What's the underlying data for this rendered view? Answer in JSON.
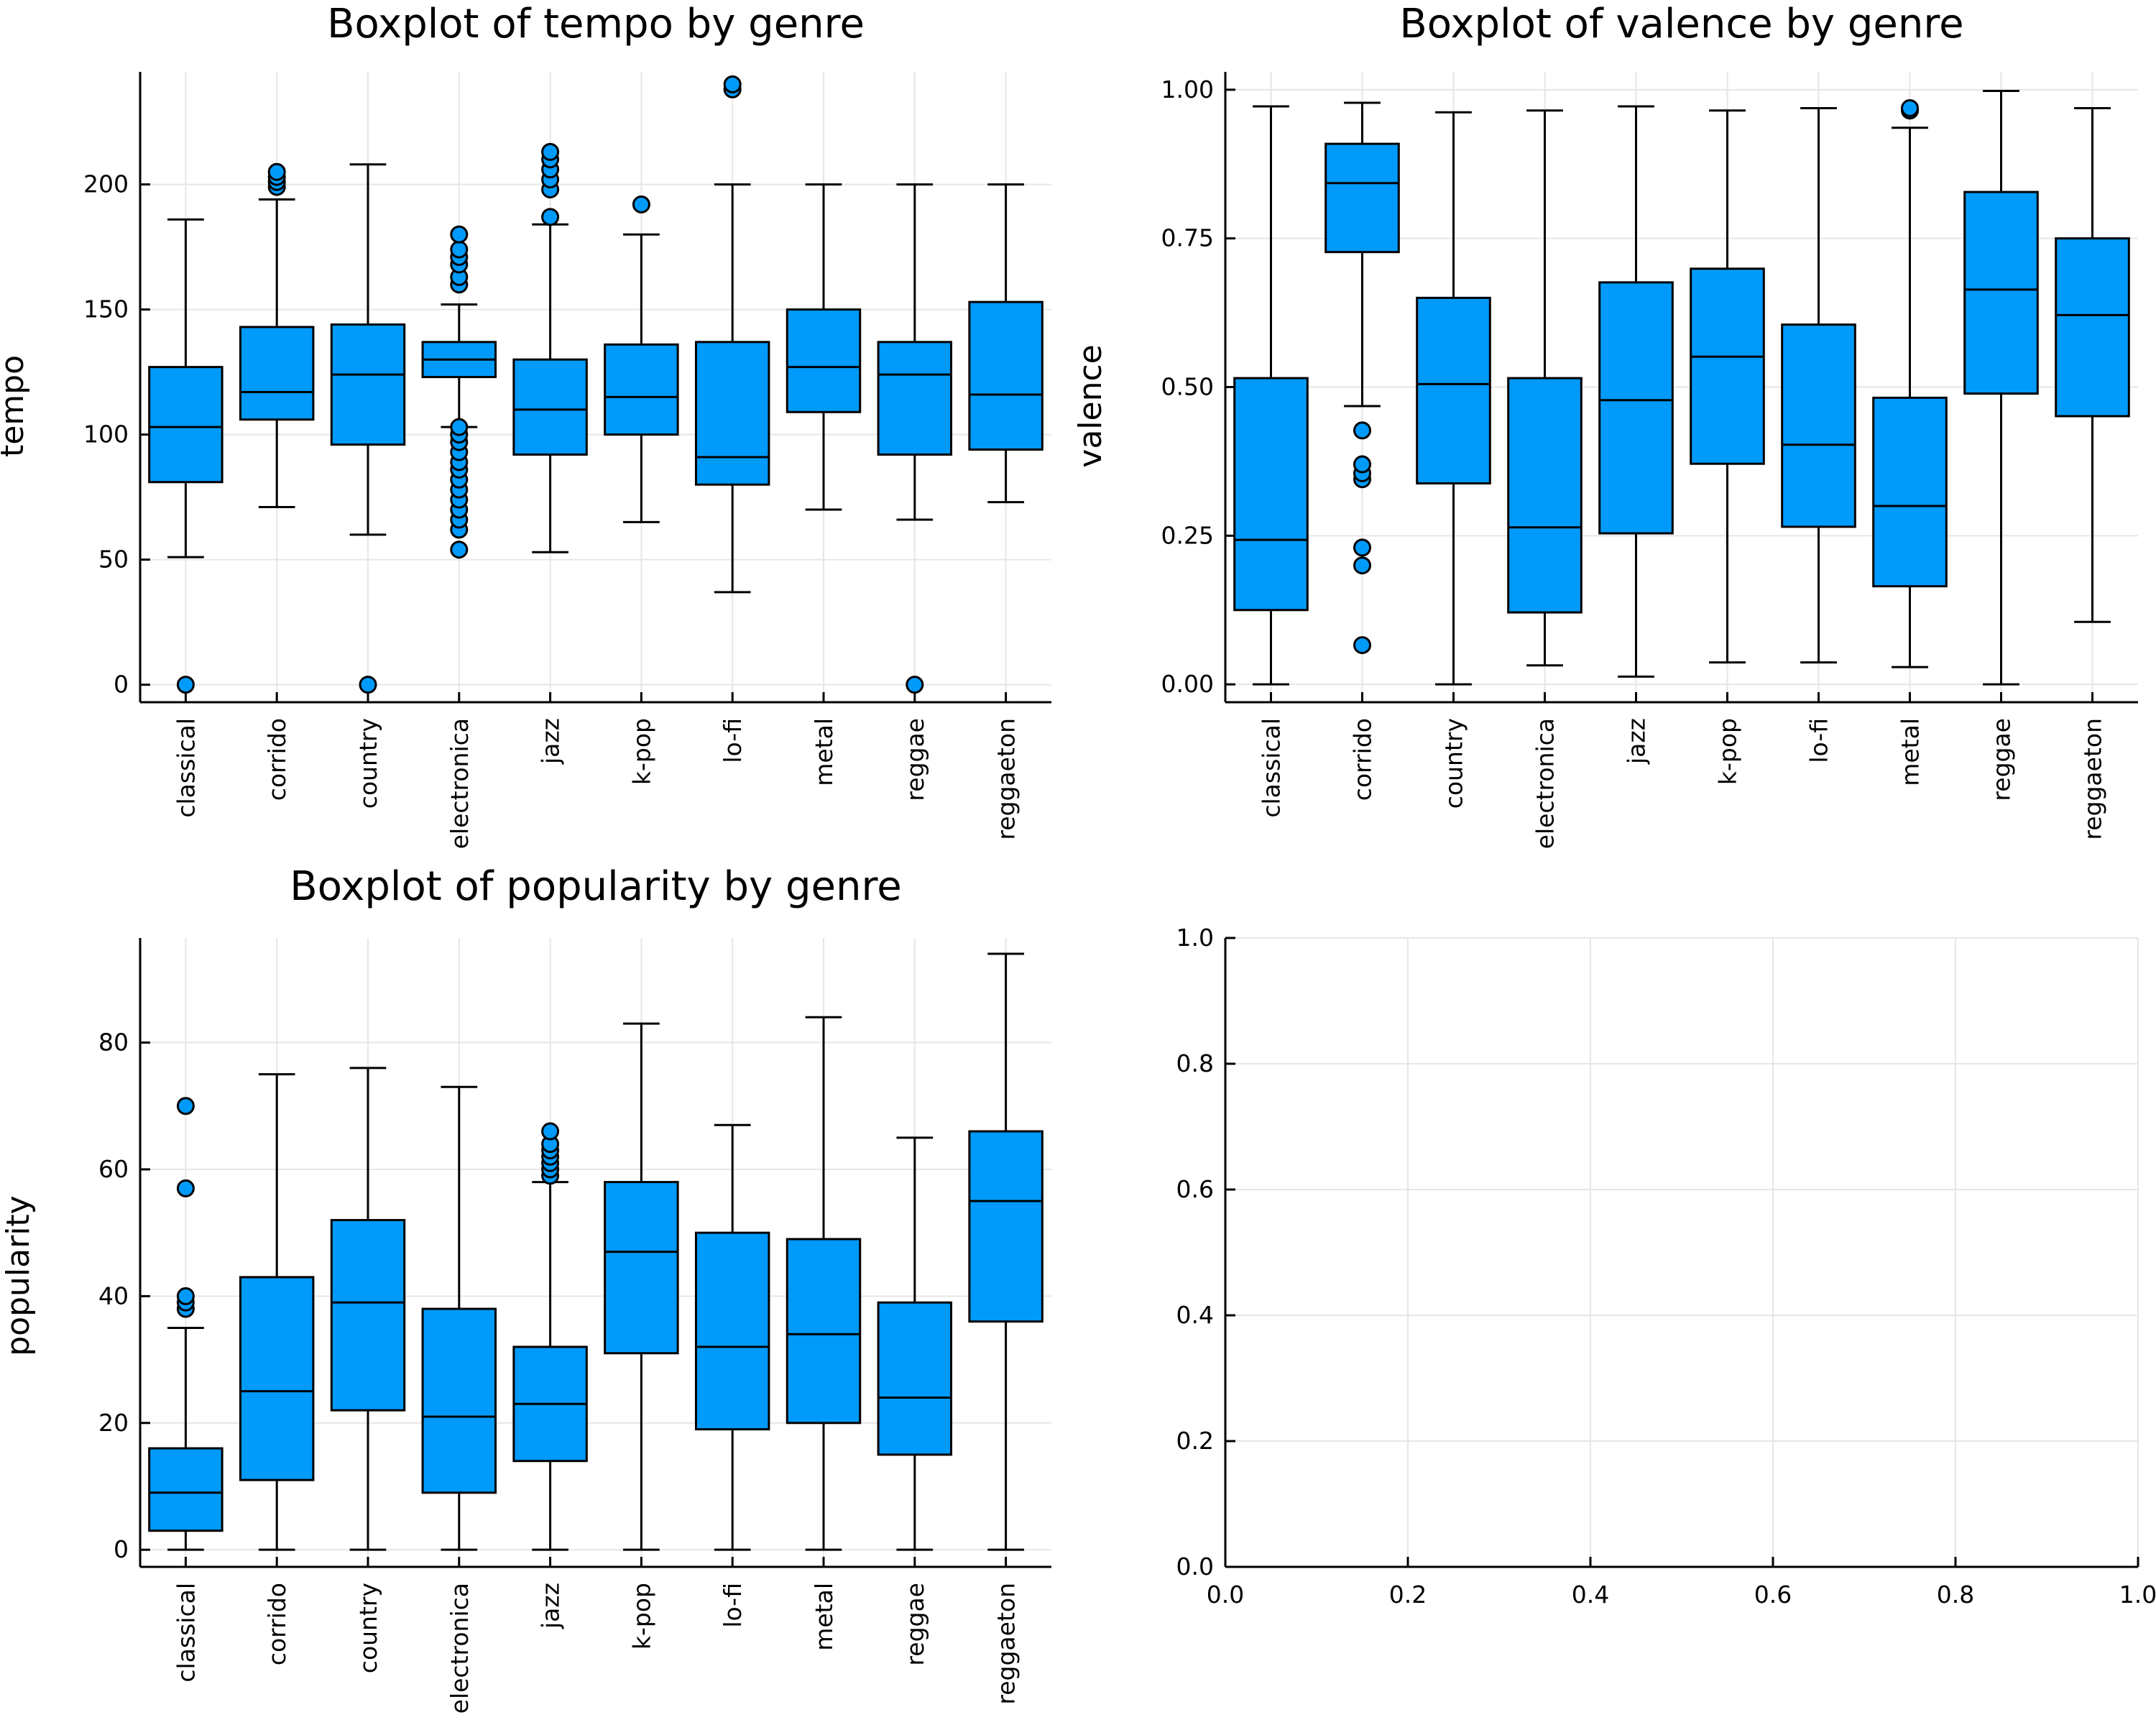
{
  "colors": {
    "box_fill": "#009AFA",
    "stroke": "#000000",
    "grid": "#E6E6E6",
    "background": "#FFFFFF"
  },
  "chart_data": [
    {
      "type": "boxplot",
      "title": "Boxplot of tempo by genre",
      "xlabel": "",
      "ylabel": "tempo",
      "categories": [
        "classical",
        "corrido",
        "country",
        "electronica",
        "jazz",
        "k-pop",
        "lo-fi",
        "metal",
        "reggae",
        "reggaeton"
      ],
      "ylim": [
        -7,
        245
      ],
      "yticks": [
        0,
        50,
        100,
        150,
        200
      ],
      "ytick_labels": [
        "0",
        "50",
        "100",
        "150",
        "200"
      ],
      "grid": true,
      "legend": "none",
      "boxes": [
        {
          "category": "classical",
          "whisker_low": 51,
          "q1": 81,
          "median": 103,
          "q3": 127,
          "whisker_high": 186,
          "outliers": [
            0
          ]
        },
        {
          "category": "corrido",
          "whisker_low": 71,
          "q1": 106,
          "median": 117,
          "q3": 143,
          "whisker_high": 194,
          "outliers": [
            199,
            201,
            203,
            205
          ]
        },
        {
          "category": "country",
          "whisker_low": 60,
          "q1": 96,
          "median": 124,
          "q3": 144,
          "whisker_high": 208,
          "outliers": [
            0
          ]
        },
        {
          "category": "electronica",
          "whisker_low": 103,
          "q1": 123,
          "median": 130,
          "q3": 137,
          "whisker_high": 152,
          "outliers": [
            54,
            62,
            66,
            70,
            74,
            78,
            82,
            86,
            89,
            93,
            97,
            100,
            103,
            160,
            163,
            168,
            171,
            174,
            180
          ]
        },
        {
          "category": "jazz",
          "whisker_low": 53,
          "q1": 92,
          "median": 110,
          "q3": 130,
          "whisker_high": 184,
          "outliers": [
            187,
            198,
            202,
            206,
            210,
            213
          ]
        },
        {
          "category": "k-pop",
          "whisker_low": 65,
          "q1": 100,
          "median": 115,
          "q3": 136,
          "whisker_high": 180,
          "outliers": [
            192
          ]
        },
        {
          "category": "lo-fi",
          "whisker_low": 37,
          "q1": 80,
          "median": 91,
          "q3": 137,
          "whisker_high": 200,
          "outliers": [
            238,
            240
          ]
        },
        {
          "category": "metal",
          "whisker_low": 70,
          "q1": 109,
          "median": 127,
          "q3": 150,
          "whisker_high": 200,
          "outliers": []
        },
        {
          "category": "reggae",
          "whisker_low": 66,
          "q1": 92,
          "median": 124,
          "q3": 137,
          "whisker_high": 200,
          "outliers": [
            0
          ]
        },
        {
          "category": "reggaeton",
          "whisker_low": 73,
          "q1": 94,
          "median": 116,
          "q3": 153,
          "whisker_high": 200,
          "outliers": []
        }
      ]
    },
    {
      "type": "boxplot",
      "title": "Boxplot of valence by genre",
      "xlabel": "",
      "ylabel": "valence",
      "categories": [
        "classical",
        "corrido",
        "country",
        "electronica",
        "jazz",
        "k-pop",
        "lo-fi",
        "metal",
        "reggae",
        "reggaeton"
      ],
      "ylim": [
        -0.03,
        1.03
      ],
      "yticks": [
        0,
        0.25,
        0.5,
        0.75,
        1.0
      ],
      "ytick_labels": [
        "0.00",
        "0.25",
        "0.50",
        "0.75",
        "1.00"
      ],
      "grid": true,
      "legend": "none",
      "boxes": [
        {
          "category": "classical",
          "whisker_low": 0.0,
          "q1": 0.125,
          "median": 0.243,
          "q3": 0.515,
          "whisker_high": 0.972,
          "outliers": []
        },
        {
          "category": "corrido",
          "whisker_low": 0.468,
          "q1": 0.727,
          "median": 0.843,
          "q3": 0.909,
          "whisker_high": 0.978,
          "outliers": [
            0.066,
            0.2,
            0.23,
            0.345,
            0.355,
            0.37,
            0.427
          ]
        },
        {
          "category": "country",
          "whisker_low": 0.0,
          "q1": 0.338,
          "median": 0.505,
          "q3": 0.65,
          "whisker_high": 0.962,
          "outliers": []
        },
        {
          "category": "electronica",
          "whisker_low": 0.032,
          "q1": 0.121,
          "median": 0.264,
          "q3": 0.515,
          "whisker_high": 0.965,
          "outliers": []
        },
        {
          "category": "jazz",
          "whisker_low": 0.013,
          "q1": 0.254,
          "median": 0.478,
          "q3": 0.676,
          "whisker_high": 0.972,
          "outliers": []
        },
        {
          "category": "k-pop",
          "whisker_low": 0.037,
          "q1": 0.371,
          "median": 0.551,
          "q3": 0.699,
          "whisker_high": 0.965,
          "outliers": []
        },
        {
          "category": "lo-fi",
          "whisker_low": 0.037,
          "q1": 0.265,
          "median": 0.403,
          "q3": 0.605,
          "whisker_high": 0.969,
          "outliers": []
        },
        {
          "category": "metal",
          "whisker_low": 0.029,
          "q1": 0.165,
          "median": 0.3,
          "q3": 0.482,
          "whisker_high": 0.936,
          "outliers": [
            0.965,
            0.969
          ]
        },
        {
          "category": "reggae",
          "whisker_low": 0.0,
          "q1": 0.489,
          "median": 0.664,
          "q3": 0.828,
          "whisker_high": 0.998,
          "outliers": []
        },
        {
          "category": "reggaeton",
          "whisker_low": 0.105,
          "q1": 0.451,
          "median": 0.621,
          "q3": 0.75,
          "whisker_high": 0.969,
          "outliers": []
        }
      ]
    },
    {
      "type": "boxplot",
      "title": "Boxplot of popularity by genre",
      "xlabel": "",
      "ylabel": "popularity",
      "categories": [
        "classical",
        "corrido",
        "country",
        "electronica",
        "jazz",
        "k-pop",
        "lo-fi",
        "metal",
        "reggae",
        "reggaeton"
      ],
      "ylim": [
        -2.7,
        96.5
      ],
      "yticks": [
        0,
        20,
        40,
        60,
        80
      ],
      "ytick_labels": [
        "0",
        "20",
        "40",
        "60",
        "80"
      ],
      "grid": true,
      "legend": "none",
      "boxes": [
        {
          "category": "classical",
          "whisker_low": 0,
          "q1": 3,
          "median": 9,
          "q3": 16,
          "whisker_high": 35,
          "outliers": [
            38,
            39,
            40,
            57,
            70
          ]
        },
        {
          "category": "corrido",
          "whisker_low": 0,
          "q1": 11,
          "median": 25,
          "q3": 43,
          "whisker_high": 75,
          "outliers": []
        },
        {
          "category": "country",
          "whisker_low": 0,
          "q1": 22,
          "median": 39,
          "q3": 52,
          "whisker_high": 76,
          "outliers": []
        },
        {
          "category": "electronica",
          "whisker_low": 0,
          "q1": 9,
          "median": 21,
          "q3": 38,
          "whisker_high": 73,
          "outliers": []
        },
        {
          "category": "jazz",
          "whisker_low": 0,
          "q1": 14,
          "median": 23,
          "q3": 32,
          "whisker_high": 58,
          "outliers": [
            59,
            60,
            61,
            62,
            63,
            64,
            66
          ]
        },
        {
          "category": "k-pop",
          "whisker_low": 0,
          "q1": 31,
          "median": 47,
          "q3": 58,
          "whisker_high": 83,
          "outliers": []
        },
        {
          "category": "lo-fi",
          "whisker_low": 0,
          "q1": 19,
          "median": 32,
          "q3": 50,
          "whisker_high": 67,
          "outliers": []
        },
        {
          "category": "metal",
          "whisker_low": 0,
          "q1": 20,
          "median": 34,
          "q3": 49,
          "whisker_high": 84,
          "outliers": []
        },
        {
          "category": "reggae",
          "whisker_low": 0,
          "q1": 15,
          "median": 24,
          "q3": 39,
          "whisker_high": 65,
          "outliers": []
        },
        {
          "category": "reggaeton",
          "whisker_low": 0,
          "q1": 36,
          "median": 55,
          "q3": 66,
          "whisker_high": 94,
          "outliers": []
        }
      ]
    },
    {
      "type": "empty",
      "title": "",
      "xlabel": "",
      "ylabel": "",
      "xlim": [
        0,
        1
      ],
      "ylim": [
        0,
        1
      ],
      "xticks": [
        0,
        0.2,
        0.4,
        0.6,
        0.8,
        1.0
      ],
      "xtick_labels": [
        "0.0",
        "0.2",
        "0.4",
        "0.6",
        "0.8",
        "1.0"
      ],
      "yticks": [
        0,
        0.2,
        0.4,
        0.6,
        0.8,
        1.0
      ],
      "ytick_labels": [
        "0.0",
        "0.2",
        "0.4",
        "0.6",
        "0.8",
        "1.0"
      ],
      "grid": true,
      "legend": "none"
    }
  ]
}
